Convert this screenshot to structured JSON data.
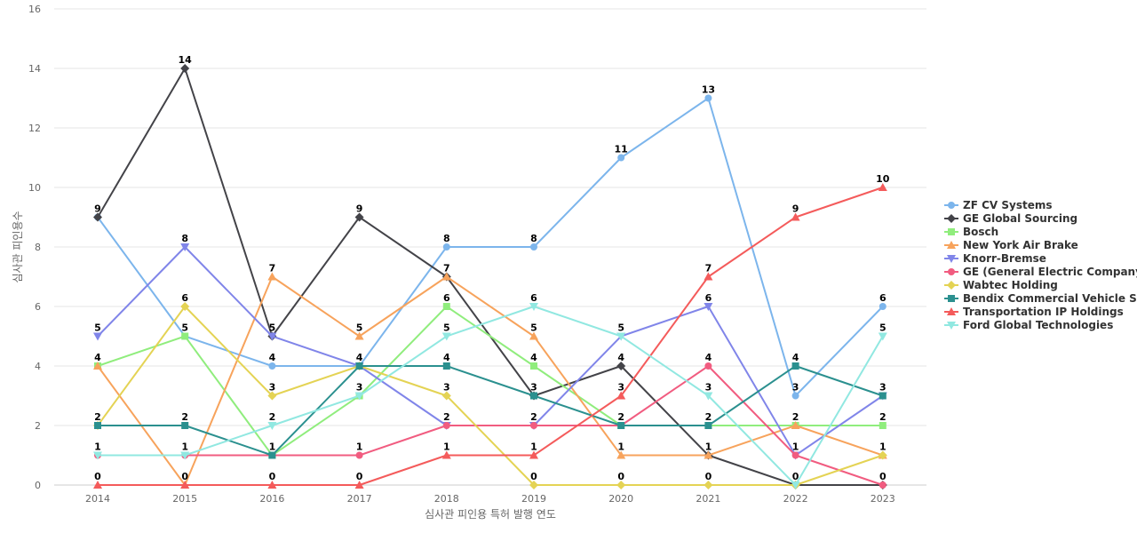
{
  "chart_data": {
    "type": "line",
    "title": "",
    "xlabel": "심사관 피인용 특허 발행 연도",
    "ylabel": "심사관 피인용수",
    "x": [
      "2014",
      "2015",
      "2016",
      "2017",
      "2018",
      "2019",
      "2020",
      "2021",
      "2022",
      "2023"
    ],
    "ylim": [
      0,
      16
    ],
    "yticks": [
      0,
      2,
      4,
      6,
      8,
      10,
      12,
      14,
      16
    ],
    "grid": true,
    "legend_position": "right",
    "data_labels": true,
    "series": [
      {
        "name": "ZF CV Systems",
        "color": "#7cb5ec",
        "marker": "circle",
        "values": [
          9,
          5,
          4,
          4,
          8,
          8,
          11,
          13,
          3,
          6
        ]
      },
      {
        "name": "GE Global Sourcing",
        "color": "#434348",
        "marker": "diamond",
        "values": [
          9,
          14,
          5,
          9,
          7,
          3,
          4,
          1,
          0,
          0
        ]
      },
      {
        "name": "Bosch",
        "color": "#90ed7d",
        "marker": "square",
        "values": [
          4,
          5,
          1,
          3,
          6,
          4,
          2,
          2,
          2,
          2
        ]
      },
      {
        "name": "New York Air Brake",
        "color": "#f7a35c",
        "marker": "triangle",
        "values": [
          4,
          0,
          7,
          5,
          7,
          5,
          1,
          1,
          2,
          1
        ]
      },
      {
        "name": "Knorr-Bremse",
        "color": "#8085e9",
        "marker": "triangle-down",
        "values": [
          5,
          8,
          5,
          4,
          2,
          2,
          5,
          6,
          1,
          3
        ]
      },
      {
        "name": "GE (General Electric Company)",
        "color": "#f15c80",
        "marker": "circle",
        "values": [
          1,
          1,
          1,
          1,
          2,
          2,
          2,
          4,
          1,
          0
        ]
      },
      {
        "name": "Wabtec Holding",
        "color": "#e4d354",
        "marker": "diamond",
        "values": [
          2,
          6,
          3,
          4,
          3,
          0,
          0,
          0,
          0,
          1
        ]
      },
      {
        "name": "Bendix Commercial Vehicle S...",
        "color": "#2b908f",
        "marker": "square",
        "values": [
          2,
          2,
          1,
          4,
          4,
          3,
          2,
          2,
          4,
          3
        ]
      },
      {
        "name": "Transportation IP Holdings",
        "color": "#f45b5b",
        "marker": "triangle",
        "values": [
          0,
          0,
          0,
          0,
          1,
          1,
          3,
          7,
          9,
          10
        ]
      },
      {
        "name": "Ford Global Technologies",
        "color": "#91e8e1",
        "marker": "triangle-down",
        "values": [
          1,
          1,
          2,
          3,
          5,
          6,
          5,
          3,
          0,
          5
        ]
      }
    ]
  }
}
